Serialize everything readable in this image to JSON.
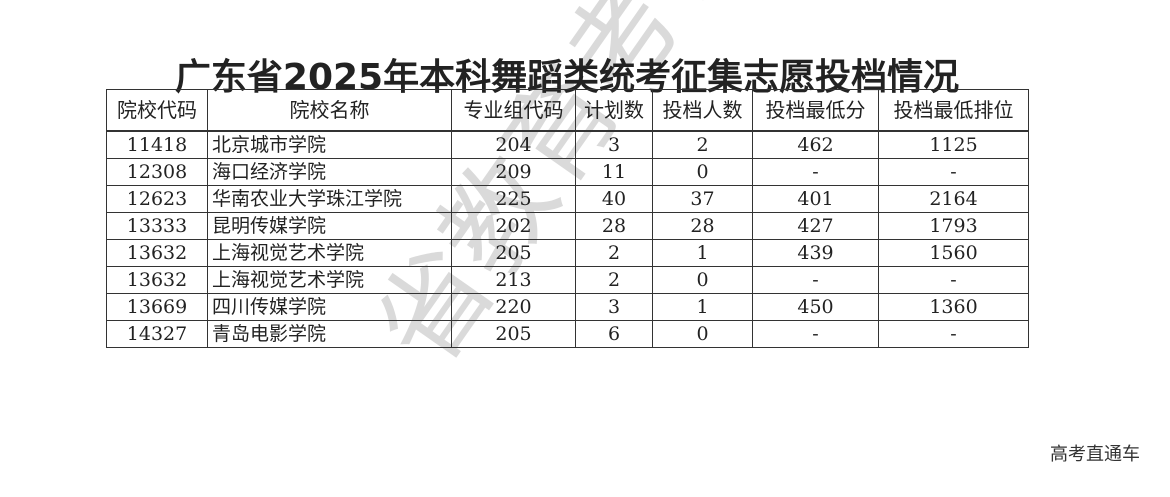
{
  "title": "广东省2025年本科舞蹈类统考征集志愿投档情况",
  "columns": [
    "院校代码",
    "院校名称",
    "专业组代码",
    "计划数",
    "投档人数",
    "投档最低分",
    "投档最低排位"
  ],
  "rows": [
    [
      "11418",
      "北京城市学院",
      "204",
      "3",
      "2",
      "462",
      "1125"
    ],
    [
      "12308",
      "海口经济学院",
      "209",
      "11",
      "0",
      "-",
      "-"
    ],
    [
      "12623",
      "华南农业大学珠江学院",
      "225",
      "40",
      "37",
      "401",
      "2164"
    ],
    [
      "13333",
      "昆明传媒学院",
      "202",
      "28",
      "28",
      "427",
      "1793"
    ],
    [
      "13632",
      "上海视觉艺术学院",
      "205",
      "2",
      "1",
      "439",
      "1560"
    ],
    [
      "13632",
      "上海视觉艺术学院",
      "213",
      "2",
      "0",
      "-",
      "-"
    ],
    [
      "13669",
      "四川传媒学院",
      "220",
      "3",
      "1",
      "450",
      "1360"
    ],
    [
      "14327",
      "青岛电影学院",
      "205",
      "6",
      "0",
      "-",
      "-"
    ]
  ],
  "watermark": "省教育考试院",
  "source": "高考直通车"
}
